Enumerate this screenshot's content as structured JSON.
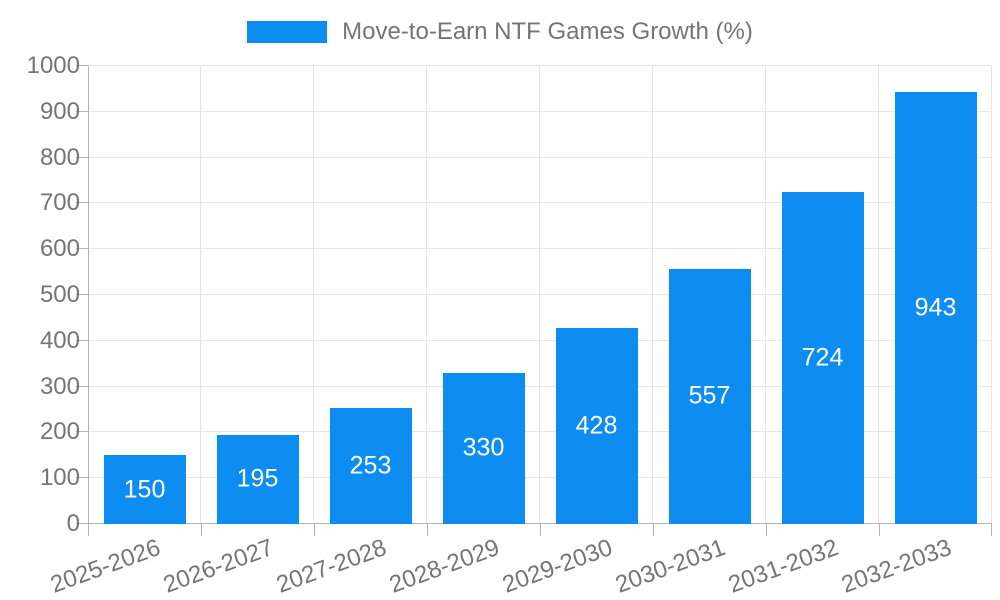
{
  "chart_data": {
    "type": "bar",
    "title": "",
    "legend": {
      "label": "Move-to-Earn NTF Games Growth (%)",
      "position": "top-center"
    },
    "categories": [
      "2025-2026",
      "2026-2027",
      "2027-2028",
      "2028-2029",
      "2029-2030",
      "2030-2031",
      "2031-2032",
      "2032-2033"
    ],
    "values": [
      150,
      195,
      253,
      330,
      428,
      557,
      724,
      943
    ],
    "value_labels": [
      "150",
      "195",
      "253",
      "330",
      "428",
      "557",
      "724",
      "943"
    ],
    "xlabel": "",
    "ylabel": "",
    "ylim": [
      0,
      1000
    ],
    "yticks": [
      0,
      100,
      200,
      300,
      400,
      500,
      600,
      700,
      800,
      900,
      1000
    ],
    "grid": true,
    "colors": {
      "bar": "#0d8cf2",
      "bar_value_text": "#ffffff",
      "axis_text": "#757575",
      "axis_line": "#b3b3b3",
      "gridline": "#e6e6e6",
      "background": "#ffffff"
    }
  }
}
